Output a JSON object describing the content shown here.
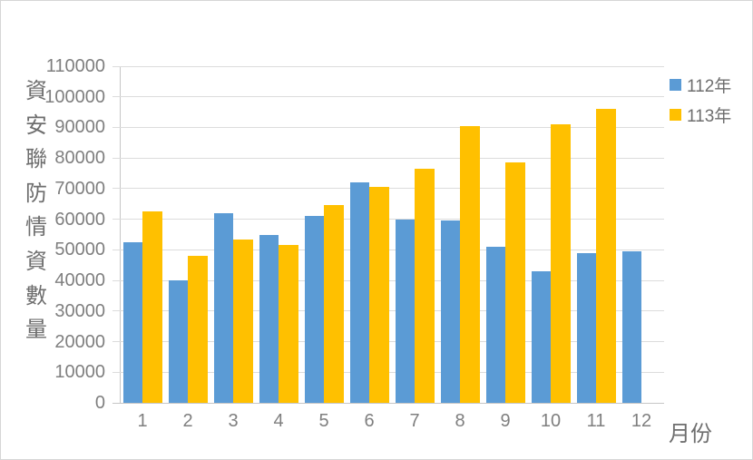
{
  "chart_data": {
    "type": "bar",
    "title": "",
    "ylabel": "資安聯防情資數量",
    "xlabel": "月份",
    "categories": [
      "1",
      "2",
      "3",
      "4",
      "5",
      "6",
      "7",
      "8",
      "9",
      "10",
      "11",
      "12"
    ],
    "series": [
      {
        "name": "112年",
        "color": "#5B9BD5",
        "values": [
          52500,
          40000,
          62000,
          55000,
          61000,
          72000,
          60000,
          59500,
          51000,
          43000,
          49000,
          49500
        ]
      },
      {
        "name": "113年",
        "color": "#FFC000",
        "values": [
          62500,
          48000,
          53500,
          51500,
          64500,
          70500,
          76500,
          90500,
          78500,
          91000,
          96000,
          null
        ]
      }
    ],
    "ylim": [
      0,
      110000
    ],
    "ytick_step": 10000,
    "ytick_labels": [
      "0",
      "10000",
      "20000",
      "30000",
      "40000",
      "50000",
      "60000",
      "70000",
      "80000",
      "90000",
      "100000",
      "110000"
    ],
    "grid": true,
    "legend_position": "right-top",
    "colors": {
      "gridline": "#DCDCDC",
      "axis_text": "#7F7F7F",
      "title_text": "#6E6E6E",
      "background": "#FFFFFF"
    }
  }
}
